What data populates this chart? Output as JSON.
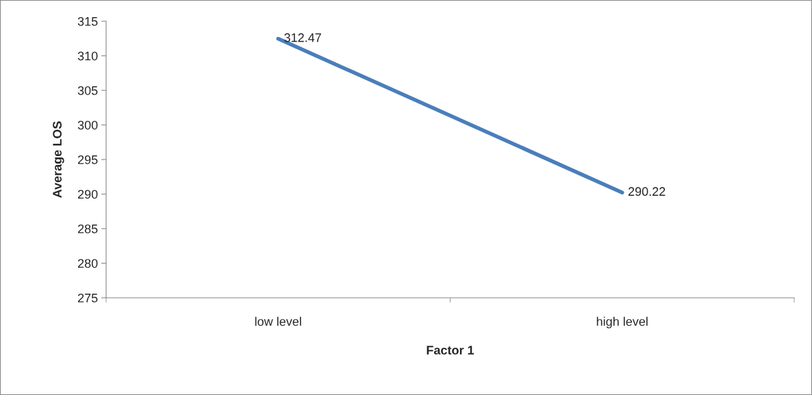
{
  "chart_data": {
    "type": "line",
    "xlabel": "Factor 1",
    "ylabel": "Average LOS",
    "categories": [
      "low level",
      "high level"
    ],
    "series": [
      {
        "color": "#4a7ebb",
        "values": [
          312.47,
          290.22
        ]
      }
    ],
    "ylim": [
      275,
      315
    ],
    "yticks": [
      275,
      280,
      285,
      290,
      295,
      300,
      305,
      310,
      315
    ],
    "data_labels": true,
    "grid": false,
    "marker": "none",
    "line_style": "solid"
  }
}
